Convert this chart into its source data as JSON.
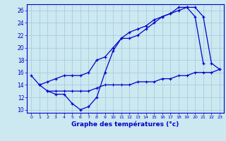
{
  "xlabel": "Graphe des températures (°c)",
  "bg_color": "#cce8f0",
  "grid_color": "#aaccdd",
  "line_color": "#0000cc",
  "line1_x": [
    0,
    1,
    2,
    3,
    4,
    5,
    6,
    7,
    8,
    9,
    10,
    11,
    12,
    13,
    14,
    15,
    16,
    17,
    18,
    19,
    20,
    21
  ],
  "line1_y": [
    15.5,
    14.0,
    13.0,
    12.5,
    12.5,
    11.0,
    10.0,
    10.5,
    12.0,
    16.0,
    19.5,
    21.5,
    21.5,
    22.0,
    23.0,
    24.0,
    25.0,
    25.5,
    26.5,
    26.5,
    25.0,
    17.5
  ],
  "line2_x": [
    1,
    2,
    3,
    4,
    5,
    6,
    7,
    8,
    9,
    10,
    11,
    12,
    13,
    14,
    15,
    16,
    17,
    18,
    19,
    20,
    21,
    22,
    23
  ],
  "line2_y": [
    14.0,
    14.5,
    15.0,
    15.5,
    15.5,
    15.5,
    16.0,
    18.0,
    18.5,
    20.0,
    21.5,
    22.5,
    23.0,
    23.5,
    24.5,
    25.0,
    25.5,
    26.0,
    26.5,
    26.5,
    25.0,
    17.5,
    16.5
  ],
  "line3_x": [
    2,
    3,
    4,
    5,
    6,
    7,
    8,
    9,
    10,
    11,
    12,
    13,
    14,
    15,
    16,
    17,
    18,
    19,
    20,
    21,
    22,
    23
  ],
  "line3_y": [
    13.0,
    13.0,
    13.0,
    13.0,
    13.0,
    13.0,
    13.5,
    14.0,
    14.0,
    14.0,
    14.0,
    14.5,
    14.5,
    14.5,
    15.0,
    15.0,
    15.5,
    15.5,
    16.0,
    16.0,
    16.0,
    16.5
  ],
  "ylim": [
    9.5,
    27
  ],
  "xlim_min": -0.5,
  "xlim_max": 23.5,
  "yticks": [
    10,
    12,
    14,
    16,
    18,
    20,
    22,
    24,
    26
  ],
  "xticks": [
    0,
    1,
    2,
    3,
    4,
    5,
    6,
    7,
    8,
    9,
    10,
    11,
    12,
    13,
    14,
    15,
    16,
    17,
    18,
    19,
    20,
    21,
    22,
    23
  ]
}
